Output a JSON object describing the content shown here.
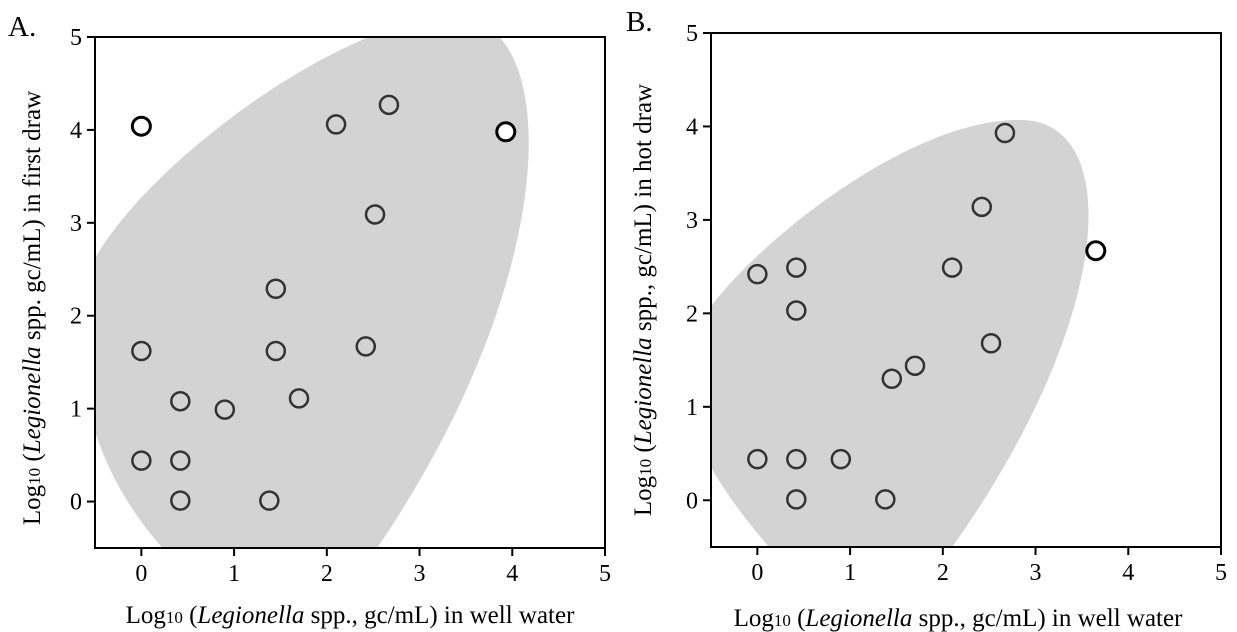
{
  "chart_data": [
    {
      "type": "scatter",
      "panel_label": "A.",
      "xlabel": {
        "pre": "Log",
        "sub": "10",
        "mid": " (",
        "italic": "Legionella",
        "post": " spp., gc/mL) in well water"
      },
      "ylabel": {
        "pre": "Log",
        "sub": "10",
        "mid": " (",
        "italic": "Legionella",
        "post": " spp. gc/mL) in first draw"
      },
      "xlim": [
        -0.5,
        5
      ],
      "ylim": [
        -0.5,
        5
      ],
      "xticks": [
        "0",
        "1",
        "2",
        "3",
        "4",
        "5"
      ],
      "yticks": [
        "0",
        "1",
        "2",
        "3",
        "4",
        "5"
      ],
      "ellipse_color": "#d3d3d3",
      "inside_points": [
        {
          "x": 0,
          "y": 1.62
        },
        {
          "x": 0,
          "y": 0.44
        },
        {
          "x": 0.42,
          "y": 1.08
        },
        {
          "x": 0.42,
          "y": 0.44
        },
        {
          "x": 0.42,
          "y": 0.01
        },
        {
          "x": 0.9,
          "y": 0.99
        },
        {
          "x": 1.38,
          "y": 0.01
        },
        {
          "x": 1.45,
          "y": 2.29
        },
        {
          "x": 1.45,
          "y": 1.62
        },
        {
          "x": 1.7,
          "y": 1.11
        },
        {
          "x": 2.1,
          "y": 4.06
        },
        {
          "x": 2.42,
          "y": 1.67
        },
        {
          "x": 2.52,
          "y": 3.09
        },
        {
          "x": 2.67,
          "y": 4.27
        }
      ],
      "outside_points": [
        {
          "x": 0,
          "y": 4.04
        },
        {
          "x": 3.93,
          "y": 3.98
        }
      ]
    },
    {
      "type": "scatter",
      "panel_label": "B.",
      "xlabel": {
        "pre": "Log",
        "sub": "10",
        "mid": " (",
        "italic": "Legionella",
        "post": " spp., gc/mL) in well water"
      },
      "ylabel": {
        "pre": "Log",
        "sub": "10",
        "mid": " (",
        "italic": "Legionella",
        "post": " spp., gc/mL) in hot draw"
      },
      "xlim": [
        -0.5,
        5
      ],
      "ylim": [
        -0.5,
        5
      ],
      "xticks": [
        "0",
        "1",
        "2",
        "3",
        "4",
        "5"
      ],
      "yticks": [
        "0",
        "1",
        "2",
        "3",
        "4",
        "5"
      ],
      "ellipse_color": "#d3d3d3",
      "inside_points": [
        {
          "x": 0,
          "y": 2.42
        },
        {
          "x": 0,
          "y": 0.44
        },
        {
          "x": 0.42,
          "y": 2.49
        },
        {
          "x": 0.42,
          "y": 2.03
        },
        {
          "x": 0.42,
          "y": 0.44
        },
        {
          "x": 0.42,
          "y": 0.01
        },
        {
          "x": 0.9,
          "y": 0.44
        },
        {
          "x": 1.38,
          "y": 0.01
        },
        {
          "x": 1.45,
          "y": 1.3
        },
        {
          "x": 1.7,
          "y": 1.44
        },
        {
          "x": 2.1,
          "y": 2.49
        },
        {
          "x": 2.42,
          "y": 3.14
        },
        {
          "x": 2.52,
          "y": 1.68
        },
        {
          "x": 2.67,
          "y": 3.93
        }
      ],
      "outside_points": [
        {
          "x": 3.65,
          "y": 2.67
        }
      ]
    }
  ]
}
